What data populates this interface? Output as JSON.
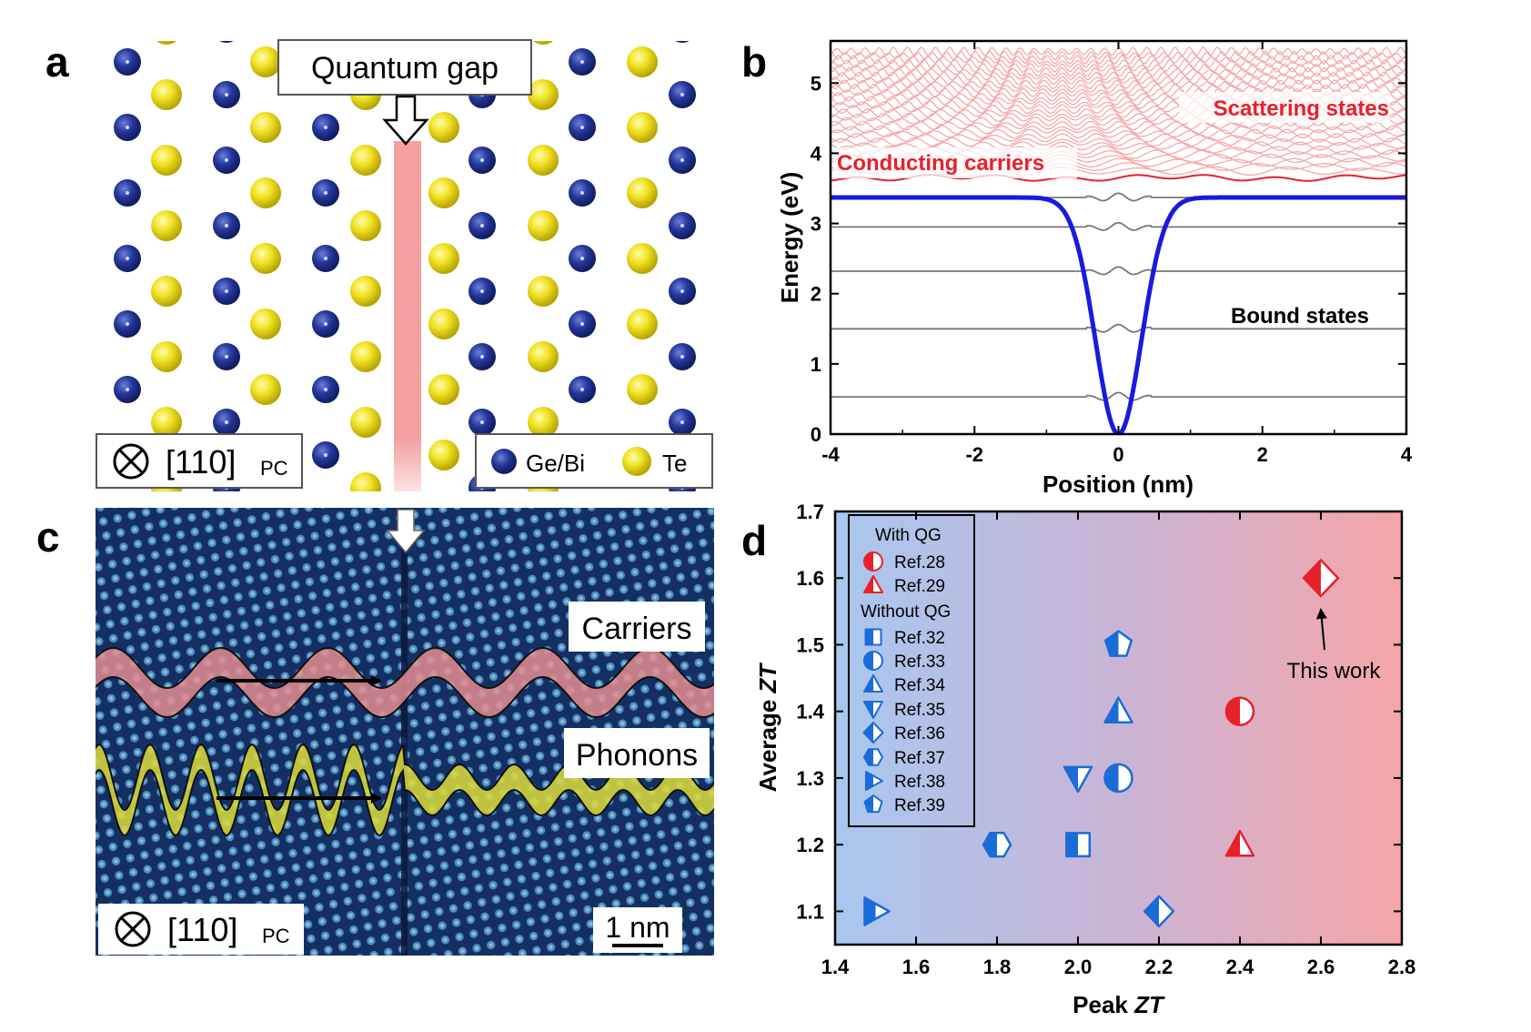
{
  "panels": {
    "a": {
      "letter": "a",
      "quantum_gap_label": "Quantum gap",
      "orientation_label": "[110]",
      "orientation_sub": "PC",
      "legend": [
        {
          "name": "Ge/Bi",
          "color": "#1e3a93"
        },
        {
          "name": "Te",
          "color": "#f0e020"
        }
      ]
    },
    "b": {
      "letter": "b",
      "scattering_label": "Scattering states",
      "conducting_label": "Conducting carriers",
      "bound_label": "Bound states"
    },
    "c": {
      "letter": "c",
      "carriers_label": "Carriers",
      "phonons_label": "Phonons",
      "orientation_label": "[110]",
      "orientation_sub": "PC",
      "scale_label": "1 nm"
    },
    "d": {
      "letter": "d",
      "with_qg_label": "With QG",
      "without_qg_label": "Without QG",
      "this_work_label": "This work"
    }
  },
  "chart_data": [
    {
      "panel": "b",
      "type": "line",
      "xlabel": "Position (nm)",
      "ylabel": "Energy (eV)",
      "xlim": [
        -4,
        4
      ],
      "ylim": [
        0,
        5.6
      ],
      "xticks": [
        -4,
        -2,
        0,
        2,
        4
      ],
      "yticks": [
        0,
        1,
        2,
        3,
        4,
        5
      ],
      "potential": {
        "depth_top": 3.37,
        "minimum": 0.0,
        "width_nm": 0.45,
        "color": "#1a1adc"
      },
      "bound_states": [
        0.53,
        1.5,
        2.32,
        2.95
      ],
      "conducting_level": 3.65,
      "scattering_range": [
        3.75,
        5.45
      ]
    },
    {
      "panel": "d",
      "type": "scatter",
      "xlabel": "Peak ZT",
      "ylabel": "Average ZT",
      "xlim": [
        1.4,
        2.8
      ],
      "ylim": [
        1.05,
        1.7
      ],
      "xticks": [
        "1.4",
        "1.6",
        "1.8",
        "2.0",
        "2.2",
        "2.4",
        "2.6",
        "2.8"
      ],
      "yticks": [
        "1.1",
        "1.2",
        "1.3",
        "1.4",
        "1.5",
        "1.6",
        "1.7"
      ],
      "colors": {
        "with_qg": "#e8202a",
        "without_qg": "#1a6cd8"
      },
      "points": [
        {
          "name": "Ref.28",
          "group": "with_qg",
          "shape": "circle",
          "x": 2.4,
          "y": 1.4
        },
        {
          "name": "Ref.29",
          "group": "with_qg",
          "shape": "triangle-up",
          "x": 2.4,
          "y": 1.2
        },
        {
          "name": "Ref.32",
          "group": "without_qg",
          "shape": "square",
          "x": 2.0,
          "y": 1.2
        },
        {
          "name": "Ref.33",
          "group": "without_qg",
          "shape": "circle",
          "x": 2.1,
          "y": 1.3
        },
        {
          "name": "Ref.34",
          "group": "without_qg",
          "shape": "triangle-up",
          "x": 2.1,
          "y": 1.4
        },
        {
          "name": "Ref.35",
          "group": "without_qg",
          "shape": "triangle-down",
          "x": 2.0,
          "y": 1.3
        },
        {
          "name": "Ref.36",
          "group": "without_qg",
          "shape": "diamond",
          "x": 2.2,
          "y": 1.1
        },
        {
          "name": "Ref.37",
          "group": "without_qg",
          "shape": "hexagon",
          "x": 1.8,
          "y": 1.2
        },
        {
          "name": "Ref.38",
          "group": "without_qg",
          "shape": "triangle-right",
          "x": 1.5,
          "y": 1.1
        },
        {
          "name": "Ref.39",
          "group": "without_qg",
          "shape": "pentagon",
          "x": 2.1,
          "y": 1.5
        },
        {
          "name": "This work",
          "group": "this_work",
          "shape": "diamond",
          "x": 2.6,
          "y": 1.6
        }
      ]
    }
  ]
}
